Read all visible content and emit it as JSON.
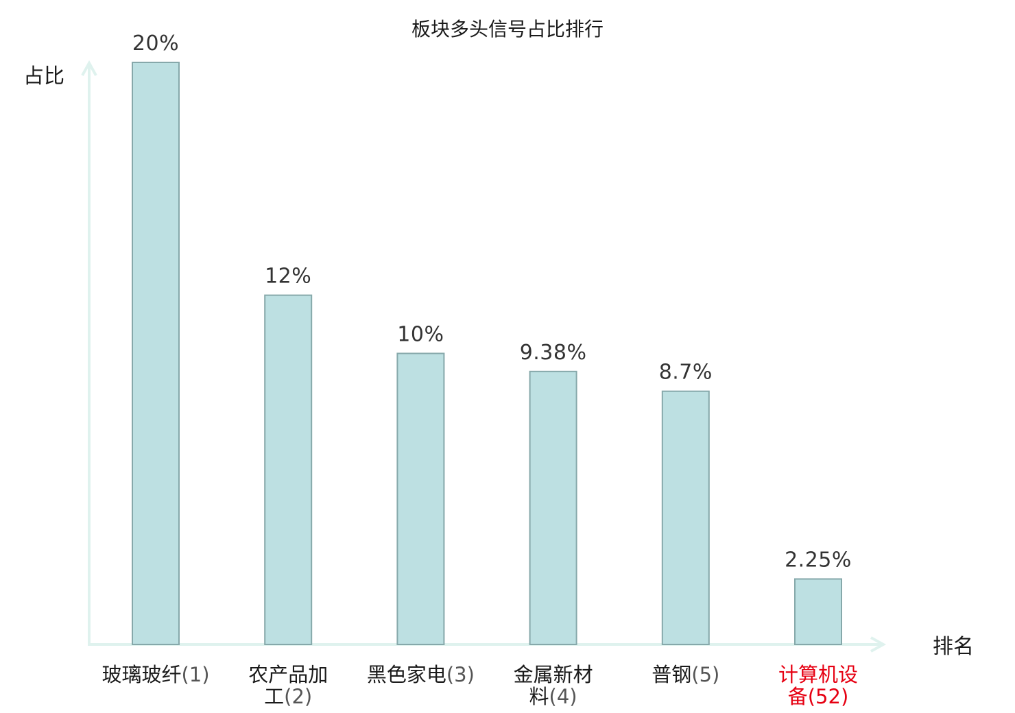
{
  "chart_data": {
    "type": "bar",
    "title": "板块多头信号占比排行",
    "ylabel": "占比",
    "xlabel": "排名",
    "categories": [
      {
        "name": "玻璃玻纤",
        "rank": "(1)",
        "lines": [
          "玻璃玻纤(1)"
        ],
        "highlight": false
      },
      {
        "name": "农产品加工",
        "rank": "(2)",
        "lines": [
          "农产品加",
          "工(2)"
        ],
        "highlight": false
      },
      {
        "name": "黑色家电",
        "rank": "(3)",
        "lines": [
          "黑色家电(3)"
        ],
        "highlight": false
      },
      {
        "name": "金属新材料",
        "rank": "(4)",
        "lines": [
          "金属新材",
          "料(4)"
        ],
        "highlight": false
      },
      {
        "name": "普钢",
        "rank": "(5)",
        "lines": [
          "普钢(5)"
        ],
        "highlight": false
      },
      {
        "name": "计算机设备",
        "rank": "(52)",
        "lines": [
          "计算机设",
          "备(52)"
        ],
        "highlight": true
      }
    ],
    "values": [
      20,
      12,
      10,
      9.38,
      8.7,
      2.25
    ],
    "value_labels": [
      "20%",
      "12%",
      "10%",
      "9.38%",
      "8.7%",
      "2.25%"
    ],
    "ylim": [
      0,
      20
    ],
    "grid": false,
    "colors": {
      "bar_fill": "#bde0e2",
      "bar_stroke": "#86a8aa",
      "axis": "#dff2ee",
      "highlight": "#e60012"
    }
  }
}
